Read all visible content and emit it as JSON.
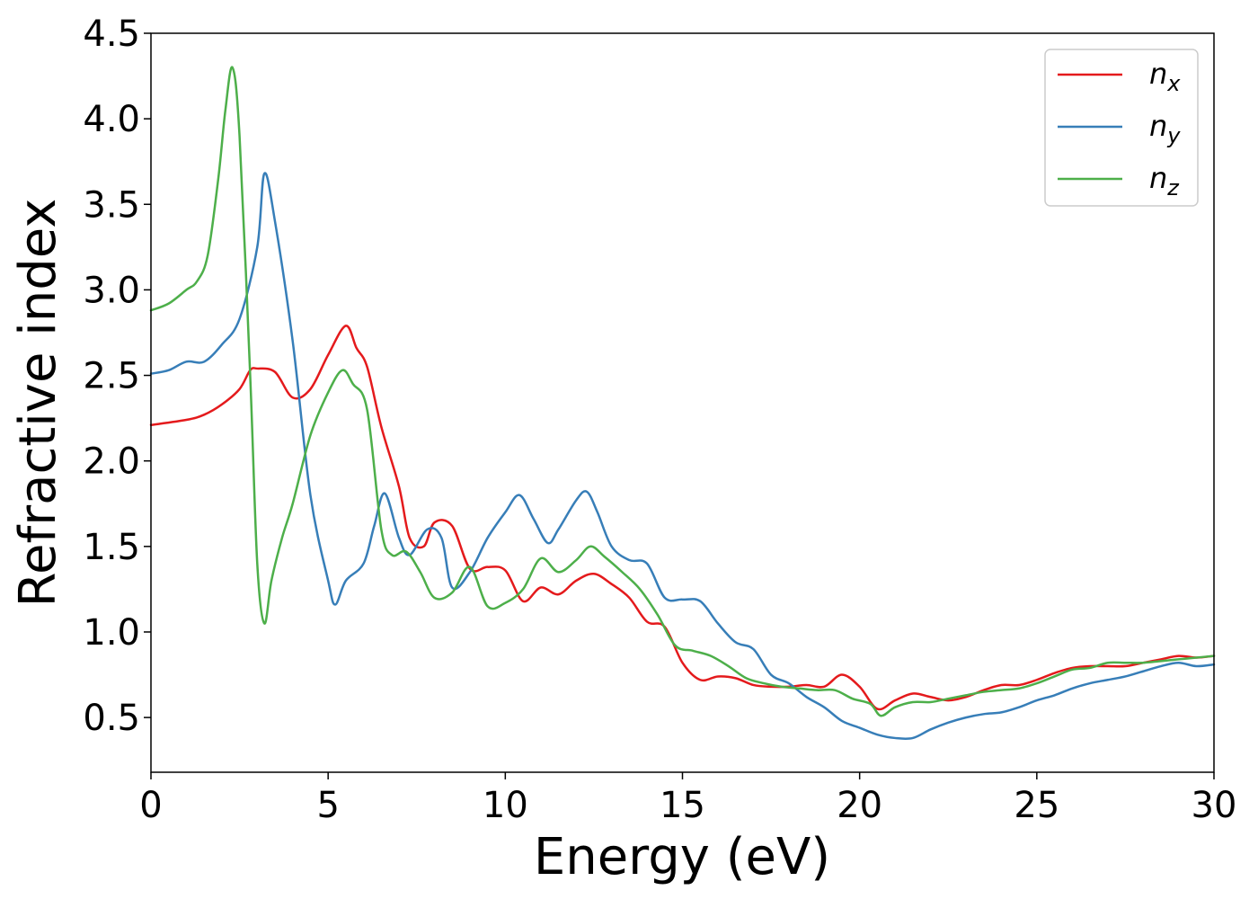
{
  "chart_data": {
    "type": "line",
    "title": "",
    "xlabel": "Energy (eV)",
    "ylabel": "Refractive index",
    "xlim": [
      0,
      30
    ],
    "ylim": [
      0.18,
      4.5
    ],
    "xticks": [
      0,
      5,
      10,
      15,
      20,
      25,
      30
    ],
    "yticks": [
      0.5,
      1.0,
      1.5,
      2.0,
      2.5,
      3.0,
      3.5,
      4.0,
      4.5
    ],
    "grid": false,
    "legend_position": "top-right",
    "series": [
      {
        "name": "n",
        "subscript": "x",
        "color": "#e41a1c",
        "x": [
          0,
          1,
          1.5,
          2,
          2.5,
          2.8,
          3,
          3.5,
          4,
          4.5,
          5,
          5.5,
          5.8,
          6.1,
          6.5,
          7,
          7.3,
          7.7,
          8,
          8.5,
          9,
          9.5,
          10,
          10.5,
          11,
          11.5,
          12,
          12.5,
          13,
          13.5,
          14,
          14.5,
          15,
          15.5,
          16,
          16.5,
          17,
          17.5,
          18,
          18.5,
          19,
          19.5,
          20,
          20.5,
          21,
          21.5,
          22,
          22.5,
          23,
          23.5,
          24,
          24.5,
          25,
          25.5,
          26,
          26.5,
          27,
          27.5,
          28,
          28.5,
          29,
          29.5,
          30
        ],
        "y": [
          2.21,
          2.24,
          2.27,
          2.33,
          2.42,
          2.53,
          2.54,
          2.52,
          2.37,
          2.42,
          2.62,
          2.79,
          2.66,
          2.55,
          2.2,
          1.85,
          1.55,
          1.5,
          1.64,
          1.62,
          1.37,
          1.38,
          1.36,
          1.18,
          1.26,
          1.22,
          1.3,
          1.34,
          1.28,
          1.2,
          1.06,
          1.03,
          0.82,
          0.72,
          0.74,
          0.73,
          0.69,
          0.68,
          0.68,
          0.69,
          0.68,
          0.75,
          0.68,
          0.55,
          0.6,
          0.64,
          0.62,
          0.6,
          0.62,
          0.66,
          0.69,
          0.69,
          0.72,
          0.76,
          0.79,
          0.8,
          0.8,
          0.8,
          0.82,
          0.84,
          0.86,
          0.85,
          0.86
        ]
      },
      {
        "name": "n",
        "subscript": "y",
        "color": "#377eb8",
        "x": [
          0,
          0.5,
          1,
          1.5,
          2,
          2.5,
          3,
          3.2,
          3.5,
          4,
          4.5,
          5,
          5.2,
          5.5,
          6,
          6.3,
          6.6,
          7,
          7.3,
          7.8,
          8.2,
          8.5,
          9,
          9.5,
          10,
          10.4,
          10.8,
          11.2,
          11.5,
          12,
          12.3,
          12.6,
          13,
          13.5,
          14,
          14.5,
          15,
          15.5,
          16,
          16.5,
          17,
          17.5,
          18,
          18.5,
          19,
          19.5,
          20,
          20.5,
          21,
          21.5,
          22,
          22.5,
          23,
          23.5,
          24,
          24.5,
          25,
          25.5,
          26,
          26.5,
          27,
          27.5,
          28,
          28.5,
          29,
          29.5,
          30
        ],
        "y": [
          2.51,
          2.53,
          2.58,
          2.58,
          2.68,
          2.83,
          3.25,
          3.68,
          3.4,
          2.7,
          1.8,
          1.3,
          1.16,
          1.3,
          1.4,
          1.62,
          1.81,
          1.55,
          1.45,
          1.6,
          1.55,
          1.26,
          1.35,
          1.55,
          1.7,
          1.8,
          1.66,
          1.52,
          1.6,
          1.77,
          1.82,
          1.7,
          1.5,
          1.42,
          1.4,
          1.2,
          1.19,
          1.18,
          1.05,
          0.94,
          0.9,
          0.75,
          0.7,
          0.62,
          0.56,
          0.48,
          0.44,
          0.4,
          0.38,
          0.38,
          0.43,
          0.47,
          0.5,
          0.52,
          0.53,
          0.56,
          0.6,
          0.63,
          0.67,
          0.7,
          0.72,
          0.74,
          0.77,
          0.8,
          0.82,
          0.8,
          0.81
        ]
      },
      {
        "name": "n",
        "subscript": "z",
        "color": "#4daf4a",
        "x": [
          0,
          0.5,
          1,
          1.3,
          1.6,
          1.9,
          2.1,
          2.3,
          2.5,
          2.8,
          3.0,
          3.2,
          3.4,
          3.7,
          4,
          4.5,
          5,
          5.4,
          5.7,
          6.1,
          6.5,
          6.8,
          7.2,
          7.6,
          8,
          8.5,
          9,
          9.5,
          10,
          10.5,
          11,
          11.5,
          12,
          12.4,
          12.8,
          13.3,
          13.8,
          14.3,
          14.8,
          15.3,
          15.8,
          16.3,
          16.8,
          17.3,
          17.8,
          18.3,
          18.8,
          19.3,
          19.8,
          20.3,
          20.6,
          21,
          21.5,
          22,
          22.5,
          23,
          23.5,
          24,
          24.5,
          25,
          25.5,
          26,
          26.5,
          27,
          27.5,
          28,
          28.5,
          29,
          29.5,
          30
        ],
        "y": [
          2.88,
          2.92,
          3.0,
          3.05,
          3.2,
          3.65,
          4.05,
          4.3,
          3.9,
          2.5,
          1.4,
          1.05,
          1.3,
          1.55,
          1.75,
          2.15,
          2.4,
          2.53,
          2.45,
          2.3,
          1.6,
          1.45,
          1.47,
          1.35,
          1.2,
          1.23,
          1.38,
          1.15,
          1.17,
          1.25,
          1.43,
          1.35,
          1.42,
          1.5,
          1.44,
          1.35,
          1.25,
          1.1,
          0.92,
          0.89,
          0.86,
          0.8,
          0.73,
          0.7,
          0.68,
          0.67,
          0.66,
          0.66,
          0.61,
          0.58,
          0.51,
          0.56,
          0.59,
          0.59,
          0.61,
          0.63,
          0.65,
          0.66,
          0.67,
          0.7,
          0.74,
          0.78,
          0.79,
          0.82,
          0.82,
          0.82,
          0.83,
          0.84,
          0.85,
          0.86
        ]
      }
    ]
  }
}
